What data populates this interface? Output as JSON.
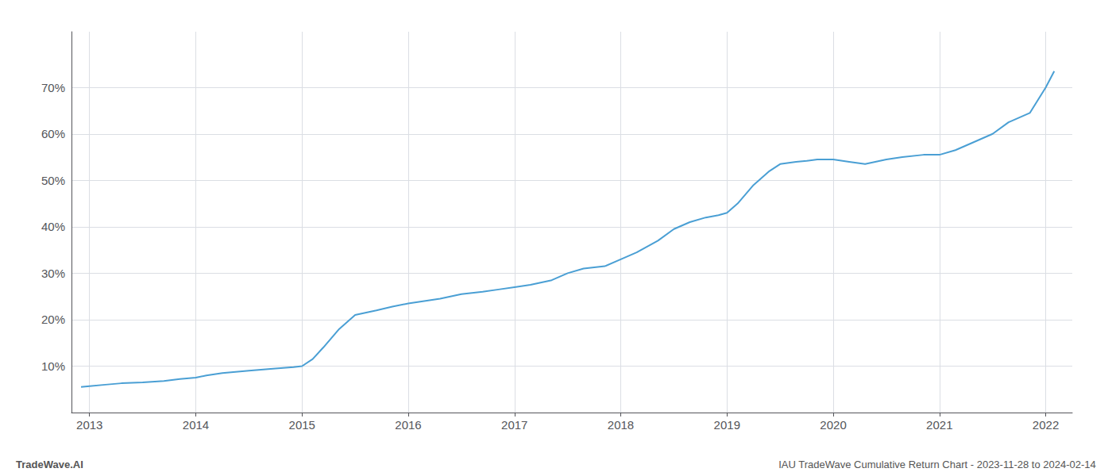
{
  "chart_data": {
    "type": "line",
    "annotations": [
      "TradeWave.AI",
      "IAU TradeWave Cumulative Return Chart - 2023-11-28 to 2024-02-14"
    ],
    "x": [
      2012.92,
      2013.0,
      2013.15,
      2013.3,
      2013.5,
      2013.7,
      2013.85,
      2014.0,
      2014.1,
      2014.25,
      2014.5,
      2014.75,
      2014.92,
      2015.0,
      2015.1,
      2015.2,
      2015.35,
      2015.5,
      2015.7,
      2015.85,
      2016.0,
      2016.15,
      2016.3,
      2016.5,
      2016.7,
      2016.85,
      2017.0,
      2017.15,
      2017.35,
      2017.5,
      2017.65,
      2017.85,
      2018.0,
      2018.15,
      2018.35,
      2018.5,
      2018.65,
      2018.8,
      2018.92,
      2019.0,
      2019.1,
      2019.25,
      2019.4,
      2019.5,
      2019.65,
      2019.75,
      2019.85,
      2020.0,
      2020.15,
      2020.3,
      2020.5,
      2020.65,
      2020.85,
      2021.0,
      2021.15,
      2021.3,
      2021.5,
      2021.65,
      2021.85,
      2022.0,
      2022.08
    ],
    "values": [
      5.5,
      5.7,
      6.0,
      6.3,
      6.5,
      6.8,
      7.2,
      7.5,
      8.0,
      8.5,
      9.0,
      9.5,
      9.8,
      10.0,
      11.5,
      14.0,
      18.0,
      21.0,
      22.0,
      22.8,
      23.5,
      24.0,
      24.5,
      25.5,
      26.0,
      26.5,
      27.0,
      27.5,
      28.5,
      30.0,
      31.0,
      31.5,
      33.0,
      34.5,
      37.0,
      39.5,
      41.0,
      42.0,
      42.5,
      43.0,
      45.0,
      49.0,
      52.0,
      53.5,
      54.0,
      54.2,
      54.5,
      54.5,
      54.0,
      53.5,
      54.5,
      55.0,
      55.5,
      55.5,
      56.5,
      58.0,
      60.0,
      62.5,
      64.5,
      70.0,
      73.5
    ],
    "color": "#4a9fd4",
    "xlim": [
      2012.83,
      2022.25
    ],
    "ylim": [
      0,
      82
    ],
    "xticks": [
      2013,
      2014,
      2015,
      2016,
      2017,
      2018,
      2019,
      2020,
      2021,
      2022
    ],
    "yticks": [
      {
        "value": 10,
        "label": "10%"
      },
      {
        "value": 20,
        "label": "20%"
      },
      {
        "value": 30,
        "label": "30%"
      },
      {
        "value": 40,
        "label": "40%"
      },
      {
        "value": 50,
        "label": "50%"
      },
      {
        "value": 60,
        "label": "60%"
      },
      {
        "value": 70,
        "label": "70%"
      }
    ],
    "grid": true
  }
}
